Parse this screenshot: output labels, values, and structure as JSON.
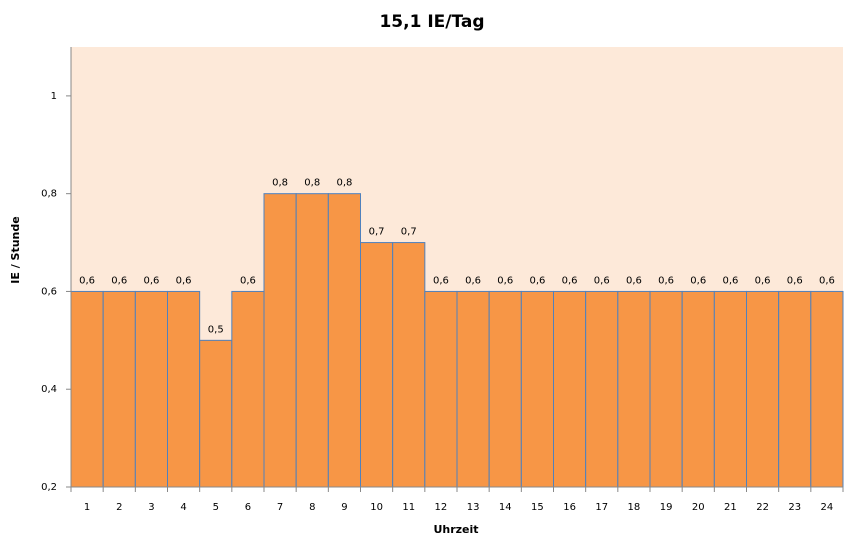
{
  "chart_data": {
    "type": "bar",
    "title": "15,1 IE/Tag",
    "x_label": "Uhrzeit",
    "y_label": "IE / Stunde",
    "categories": [
      "1",
      "2",
      "3",
      "4",
      "5",
      "6",
      "7",
      "8",
      "9",
      "10",
      "11",
      "12",
      "13",
      "14",
      "15",
      "16",
      "17",
      "18",
      "19",
      "20",
      "21",
      "22",
      "23",
      "24"
    ],
    "values": [
      0.6,
      0.6,
      0.6,
      0.6,
      0.5,
      0.6,
      0.8,
      0.8,
      0.8,
      0.7,
      0.7,
      0.6,
      0.6,
      0.6,
      0.6,
      0.6,
      0.6,
      0.6,
      0.6,
      0.6,
      0.6,
      0.6,
      0.6,
      0.6
    ],
    "value_labels": [
      "0,6",
      "0,6",
      "0,6",
      "0,6",
      "0,5",
      "0,6",
      "0,8",
      "0,8",
      "0,8",
      "0,7",
      "0,7",
      "0,6",
      "0,6",
      "0,6",
      "0,6",
      "0,6",
      "0,6",
      "0,6",
      "0,6",
      "0,6",
      "0,6",
      "0,6",
      "0,6",
      "0,6"
    ],
    "color": "#f79646",
    "edge_color": "#4f81bd",
    "background": "#fde9d9",
    "ylim": [
      0.2,
      1.1
    ],
    "yticks": [
      {
        "value": 0.2,
        "label": "0,2"
      },
      {
        "value": 0.4,
        "label": "0,4"
      },
      {
        "value": 0.6,
        "label": "0,6"
      },
      {
        "value": 0.8,
        "label": "0,8"
      },
      1
    ],
    "grid": false
  }
}
